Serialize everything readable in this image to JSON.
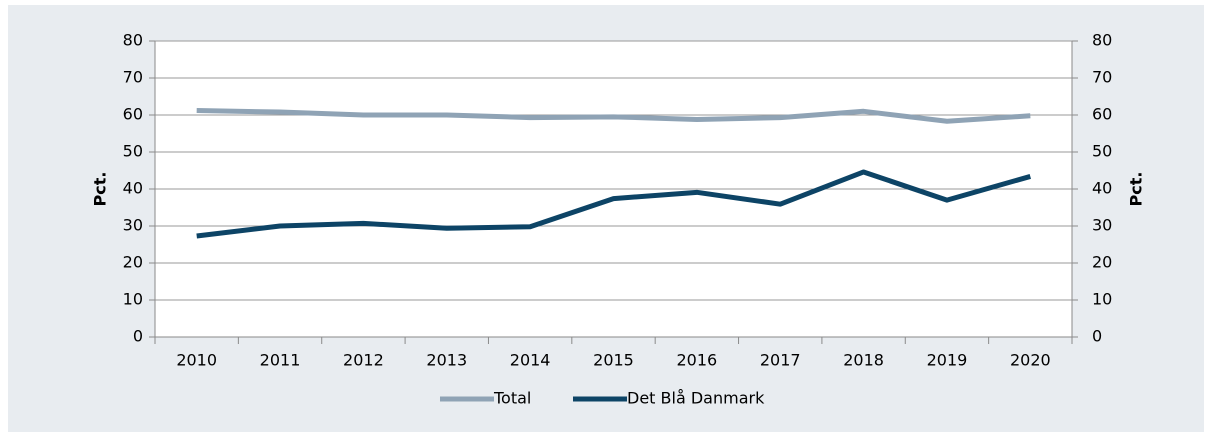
{
  "chart_data": {
    "type": "line",
    "categories": [
      "2010",
      "2011",
      "2012",
      "2013",
      "2014",
      "2015",
      "2016",
      "2017",
      "2018",
      "2019",
      "2020"
    ],
    "series": [
      {
        "name": "Total",
        "color": "#8fa3b5",
        "values": [
          61.2,
          60.8,
          60,
          60,
          59.3,
          59.5,
          58.8,
          59.3,
          61,
          58.3,
          59.8
        ]
      },
      {
        "name": "Det Blå Danmark",
        "color": "#0d4466",
        "values": [
          27.3,
          30,
          30.7,
          29.4,
          29.8,
          37.4,
          39.1,
          35.9,
          44.6,
          37,
          43.4
        ]
      }
    ],
    "ylabel": "Pct.",
    "y2label": "Pct.",
    "ylim": [
      0,
      80
    ],
    "yticks": [
      0,
      10,
      20,
      30,
      40,
      50,
      60,
      70,
      80
    ],
    "y2lim": [
      0,
      80
    ],
    "y2ticks": [
      0,
      10,
      20,
      30,
      40,
      50,
      60,
      70,
      80
    ],
    "grid": true,
    "legend": "bottom"
  }
}
